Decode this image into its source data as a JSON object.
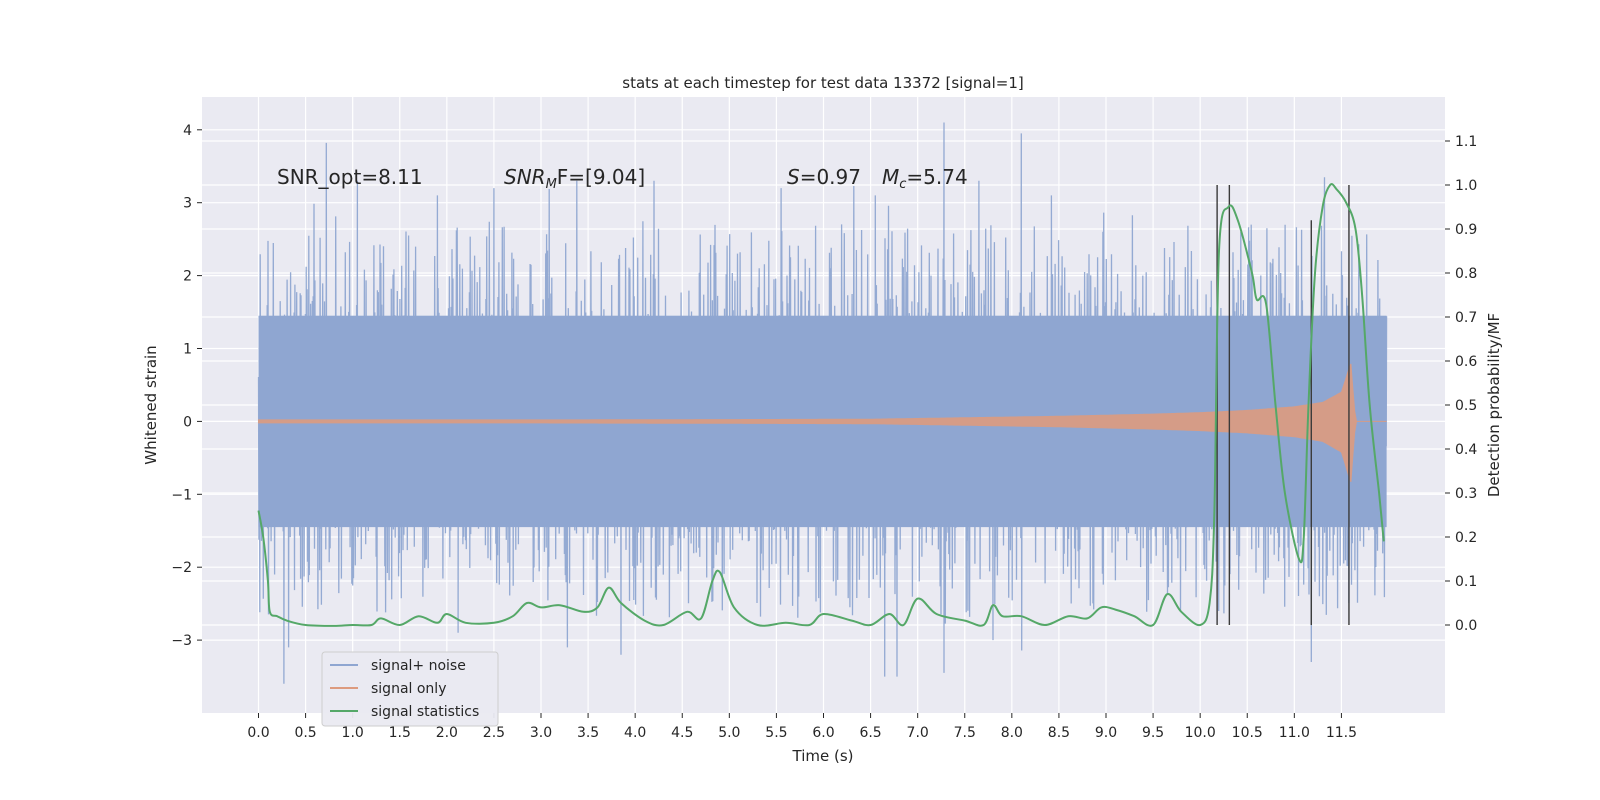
{
  "chart_data": {
    "type": "line",
    "title": "stats at each timestep for test data 13372 [signal=1]",
    "xlabel": "Time (s)",
    "ylabel": "Whitened strain",
    "ylabel_right": "Detection probability/MF",
    "xlim": [
      -0.6,
      12.6
    ],
    "ylim": [
      -4.0,
      4.45
    ],
    "ylim_right": [
      -0.2,
      1.2
    ],
    "x_ticks": [
      0.0,
      0.5,
      1.0,
      1.5,
      2.0,
      2.5,
      3.0,
      3.5,
      4.0,
      4.5,
      5.0,
      5.5,
      6.0,
      6.5,
      7.0,
      7.5,
      8.0,
      8.5,
      9.0,
      9.5,
      10.0,
      10.5,
      11.0,
      11.5
    ],
    "x_tick_labels": [
      "0.0",
      "0.5",
      "1.0",
      "1.5",
      "2.0",
      "2.5",
      "3.0",
      "3.5",
      "4.0",
      "4.5",
      "5.0",
      "5.5",
      "6.0",
      "6.5",
      "7.0",
      "7.5",
      "8.0",
      "8.5",
      "9.0",
      "9.5",
      "10.0",
      "10.5",
      "11.0",
      "11.5"
    ],
    "y_ticks": [
      -3,
      -2,
      -1,
      0,
      1,
      2,
      3,
      4
    ],
    "y_tick_labels": [
      "−3",
      "−2",
      "−1",
      "0",
      "1",
      "2",
      "3",
      "4"
    ],
    "y_right_ticks": [
      0.0,
      0.1,
      0.2,
      0.3,
      0.4,
      0.5,
      0.6,
      0.7,
      0.8,
      0.9,
      1.0,
      1.1
    ],
    "y_right_tick_labels": [
      "0.0",
      "0.1",
      "0.2",
      "0.3",
      "0.4",
      "0.5",
      "0.6",
      "0.7",
      "0.8",
      "0.9",
      "1.0",
      "1.1"
    ],
    "annotations": {
      "snr_opt": "SNR_opt=8.11",
      "snr_mf_main": "SNR",
      "snr_mf_sub": "M",
      "snr_mf_rest": "F=[9.04]",
      "s_main": "S",
      "s_rest": "=0.97",
      "mc_main": "M",
      "mc_sub": "c",
      "mc_rest": "=5.74"
    },
    "legend": {
      "location": "lower-left",
      "entries": [
        "signal+ noise",
        "signal only",
        "signal statistics"
      ]
    },
    "colors": {
      "noise": "#8fa6d1",
      "signal": "#dd9b7f",
      "stats": "#55a868",
      "vlines": "#3a3a3a",
      "background": "#eaeaf2",
      "grid": "#ffffff"
    },
    "series": [
      {
        "name": "signal+ noise",
        "x_range": [
          0.0,
          11.98
        ],
        "envelope_sigma": 1.45,
        "peak_points": [
          [
            0.72,
            3.82
          ],
          [
            1.05,
            3.3
          ],
          [
            1.9,
            3.1
          ],
          [
            2.5,
            3.2
          ],
          [
            3.38,
            3.3
          ],
          [
            4.2,
            3.3
          ],
          [
            5.55,
            3.2
          ],
          [
            6.55,
            3.1
          ],
          [
            7.28,
            4.1
          ],
          [
            7.65,
            3.3
          ],
          [
            8.1,
            3.95
          ],
          [
            8.42,
            3.1
          ],
          [
            11.32,
            3.35
          ]
        ],
        "trough_points": [
          [
            0.27,
            -3.6
          ],
          [
            0.32,
            -3.1
          ],
          [
            2.12,
            -2.9
          ],
          [
            3.28,
            -3.1
          ],
          [
            3.85,
            -3.2
          ],
          [
            6.65,
            -3.5
          ],
          [
            6.78,
            -3.5
          ],
          [
            7.28,
            -3.45
          ],
          [
            7.8,
            -3.0
          ],
          [
            11.18,
            -3.3
          ]
        ]
      },
      {
        "name": "signal only",
        "x_range": [
          0.0,
          11.98
        ],
        "x": [
          0.0,
          3.0,
          5.0,
          6.5,
          7.5,
          8.5,
          9.5,
          10.0,
          10.5,
          11.0,
          11.3,
          11.5,
          11.6,
          11.63,
          11.65,
          11.98
        ],
        "amplitude": [
          0.02,
          0.02,
          0.025,
          0.03,
          0.05,
          0.07,
          0.1,
          0.12,
          0.15,
          0.2,
          0.26,
          0.4,
          0.8,
          0.3,
          0.0,
          0.0
        ]
      },
      {
        "name": "signal statistics",
        "axis": "right",
        "x": [
          0.0,
          0.05,
          0.1,
          0.12,
          0.2,
          0.3,
          0.5,
          0.8,
          1.0,
          1.2,
          1.3,
          1.5,
          1.7,
          1.9,
          2.0,
          2.2,
          2.5,
          2.7,
          2.85,
          3.0,
          3.2,
          3.45,
          3.6,
          3.72,
          3.85,
          4.1,
          4.3,
          4.55,
          4.7,
          4.82,
          4.9,
          5.05,
          5.3,
          5.6,
          5.85,
          6.0,
          6.3,
          6.5,
          6.7,
          6.85,
          7.0,
          7.2,
          7.5,
          7.7,
          7.8,
          7.9,
          8.1,
          8.35,
          8.6,
          8.8,
          8.95,
          9.1,
          9.3,
          9.5,
          9.65,
          9.8,
          10.0,
          10.1,
          10.15,
          10.2,
          10.3,
          10.4,
          10.55,
          10.6,
          10.7,
          10.8,
          10.9,
          11.05,
          11.1,
          11.15,
          11.22,
          11.3,
          11.38,
          11.45,
          11.55,
          11.65,
          11.72,
          11.8,
          11.9,
          11.95
        ],
        "values": [
          0.26,
          0.2,
          0.1,
          0.03,
          0.02,
          0.01,
          0.0,
          -0.002,
          0.0,
          0.0,
          0.015,
          0.0,
          0.02,
          0.005,
          0.025,
          0.005,
          0.005,
          0.02,
          0.05,
          0.04,
          0.045,
          0.03,
          0.04,
          0.085,
          0.05,
          0.01,
          0.0,
          0.03,
          0.015,
          0.1,
          0.12,
          0.04,
          0.0,
          0.005,
          0.0,
          0.025,
          0.01,
          0.0,
          0.025,
          0.0,
          0.06,
          0.025,
          0.01,
          0.0,
          0.045,
          0.02,
          0.02,
          0.0,
          0.02,
          0.015,
          0.04,
          0.035,
          0.02,
          0.0,
          0.07,
          0.03,
          0.0,
          0.05,
          0.25,
          0.85,
          0.95,
          0.92,
          0.8,
          0.74,
          0.73,
          0.5,
          0.3,
          0.15,
          0.2,
          0.5,
          0.8,
          0.95,
          1.0,
          0.99,
          0.96,
          0.9,
          0.75,
          0.5,
          0.3,
          0.19
        ]
      }
    ],
    "vertical_lines": [
      {
        "x": 10.18,
        "y_right": [
          0.0,
          1.0
        ]
      },
      {
        "x": 10.31,
        "y_right": [
          0.0,
          1.0
        ]
      },
      {
        "x": 11.18,
        "y_right": [
          0.0,
          0.92
        ]
      },
      {
        "x": 11.58,
        "y_right": [
          0.0,
          1.0
        ]
      }
    ]
  }
}
